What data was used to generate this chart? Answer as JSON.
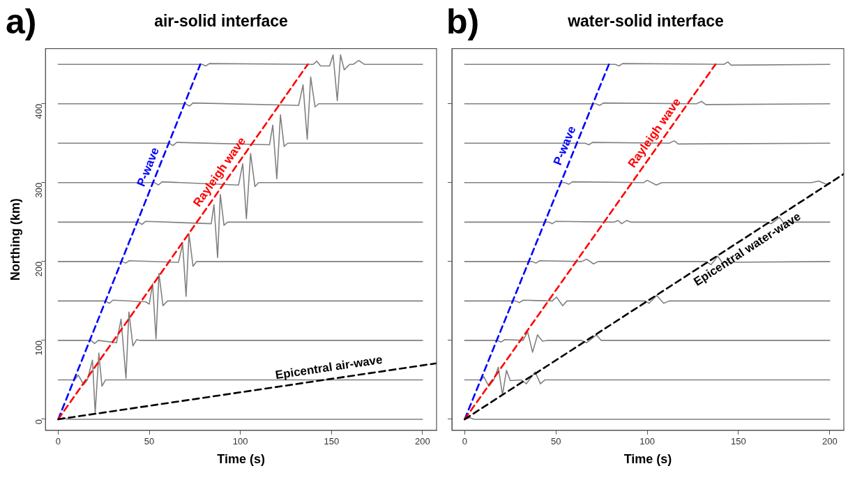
{
  "chart_data": [
    {
      "type": "line",
      "title": "air-solid interface",
      "xlabel": "Time (s)",
      "ylabel": "Northing (km)",
      "annotations": [
        "a)"
      ],
      "xlim": [
        -7,
        207.7
      ],
      "ylim": [
        -14,
        470
      ],
      "xticks": [
        0,
        50,
        100,
        150,
        200
      ],
      "yticks": [
        0,
        100,
        200,
        300,
        400
      ],
      "grid": false,
      "legend": false,
      "marker": "none",
      "series": [
        {
          "color": "#808080",
          "x": [
            0,
            3,
            5,
            200
          ],
          "values": [
            0,
            2,
            0,
            0
          ]
        },
        {
          "color": "#808080",
          "x": [
            0,
            9,
            11,
            14,
            16,
            18.8,
            20.3,
            22.3,
            24,
            26,
            200
          ],
          "values": [
            50,
            50,
            56,
            44,
            50,
            75,
            8,
            84,
            42,
            50,
            50
          ]
        },
        {
          "color": "#808080",
          "x": [
            0,
            18,
            20,
            22,
            32,
            34.5,
            37.2,
            38.8,
            41,
            43,
            45,
            200
          ],
          "values": [
            100,
            100,
            96,
            100,
            97,
            127,
            52,
            136,
            93,
            101,
            100,
            100
          ]
        },
        {
          "color": "#808080",
          "x": [
            0,
            26,
            28,
            30,
            48,
            50,
            51.8,
            53.7,
            55.3,
            57.5,
            60,
            200
          ],
          "values": [
            150,
            150,
            147,
            151,
            149,
            146,
            172,
            102,
            185,
            144,
            150,
            150
          ]
        },
        {
          "color": "#808080",
          "x": [
            0,
            35,
            37,
            39,
            66,
            68.3,
            70.2,
            71.8,
            74,
            76,
            200
          ],
          "values": [
            200,
            200,
            198,
            201,
            199,
            222,
            156,
            235,
            194,
            200,
            200
          ]
        },
        {
          "color": "#808080",
          "x": [
            0,
            44,
            46,
            48,
            84,
            85.5,
            87.5,
            89,
            91,
            93,
            200
          ],
          "values": [
            250,
            250,
            247,
            251,
            248,
            272,
            205,
            285,
            246,
            250,
            250
          ]
        },
        {
          "color": "#808080",
          "x": [
            0,
            53,
            55,
            57,
            99,
            101.3,
            103.3,
            105.6,
            108,
            110,
            200
          ],
          "values": [
            300,
            300,
            297,
            301,
            297,
            324,
            254,
            337,
            295,
            300,
            300
          ]
        },
        {
          "color": "#808080",
          "x": [
            0,
            61,
            63,
            65,
            116,
            117.8,
            120,
            122,
            124,
            126,
            200
          ],
          "values": [
            350,
            350,
            347,
            351,
            348,
            373,
            305,
            386,
            346,
            350,
            350
          ]
        },
        {
          "color": "#808080",
          "x": [
            0,
            70,
            72,
            74,
            132,
            134.4,
            136.7,
            138.6,
            141,
            143,
            200
          ],
          "values": [
            400,
            400,
            397,
            401,
            398,
            424,
            355,
            434,
            396,
            400,
            400
          ]
        },
        {
          "color": "#808080",
          "x": [
            0,
            79,
            81,
            83,
            140,
            142,
            144,
            149,
            150.9,
            153.2,
            155,
            157,
            160,
            162,
            165,
            168,
            200
          ],
          "values": [
            450,
            450,
            448,
            451,
            450,
            454,
            448,
            448,
            462,
            404,
            462,
            443,
            450,
            450,
            455,
            450,
            450
          ]
        },
        {
          "name": "P-wave",
          "color": "#0000ff",
          "line_style": "dashed",
          "x": [
            0,
            78
          ],
          "values": [
            0,
            450
          ]
        },
        {
          "name": "Rayleigh wave",
          "color": "#ff0000",
          "line_style": "dashed",
          "x": [
            0,
            137
          ],
          "values": [
            0,
            450
          ]
        },
        {
          "name": "Epicentral air-wave",
          "color": "#000000",
          "line_style": "dashed",
          "x": [
            0,
            207.7
          ],
          "values": [
            0,
            71
          ]
        }
      ]
    },
    {
      "type": "line",
      "title": "water-solid interface",
      "xlabel": "Time (s)",
      "annotations": [
        "b)"
      ],
      "xlim": [
        -7,
        207.7
      ],
      "ylim": [
        -14,
        470
      ],
      "xticks": [
        0,
        50,
        100,
        150,
        200
      ],
      "yticks": [
        0,
        100,
        200,
        300,
        400
      ],
      "tick_labels": "x",
      "grid": false,
      "legend": false,
      "marker": "none",
      "series": [
        {
          "color": "#808080",
          "x": [
            0,
            3,
            5,
            200
          ],
          "values": [
            0,
            2,
            0,
            0
          ]
        },
        {
          "color": "#808080",
          "x": [
            0,
            9,
            10.4,
            13.3,
            16,
            18.4,
            20.7,
            22.9,
            25,
            31,
            33.8,
            38.6,
            41.5,
            44,
            200
          ],
          "values": [
            50,
            50,
            54,
            42,
            50,
            66,
            31,
            62,
            49,
            50,
            45,
            60,
            45,
            50,
            50
          ]
        },
        {
          "color": "#808080",
          "x": [
            0,
            18,
            20,
            22,
            32,
            34.5,
            37.2,
            39.9,
            42.6,
            45,
            64,
            66.8,
            72.2,
            74.8,
            200
          ],
          "values": [
            100,
            100,
            98,
            101,
            100,
            111,
            85,
            107,
            99,
            100,
            100,
            97,
            107,
            100,
            100
          ]
        },
        {
          "color": "#808080",
          "x": [
            0,
            28,
            30,
            32,
            48,
            50.3,
            53.7,
            56,
            99,
            101,
            105.2,
            109,
            112,
            200
          ],
          "values": [
            150,
            150,
            148,
            151,
            150,
            155,
            144,
            150,
            150,
            147,
            157,
            147,
            150,
            150
          ]
        },
        {
          "color": "#808080",
          "x": [
            0,
            37,
            39,
            41,
            64,
            66.8,
            70.6,
            73,
            132,
            135,
            138.6,
            141,
            200
          ],
          "values": [
            200,
            200,
            198,
            201,
            200,
            203,
            197,
            200,
            200,
            196,
            207,
            199,
            200
          ]
        },
        {
          "color": "#808080",
          "x": [
            0,
            46,
            48,
            50,
            82,
            84,
            86,
            88.7,
            91,
            165,
            168,
            172.4,
            175,
            178,
            200
          ],
          "values": [
            250,
            250,
            248,
            251,
            250,
            252,
            248,
            252,
            250,
            250,
            248,
            256,
            248,
            250,
            250
          ]
        },
        {
          "color": "#808080",
          "x": [
            0,
            55,
            57,
            59,
            98,
            100,
            105,
            108,
            190,
            194,
            198,
            200
          ],
          "values": [
            300,
            300,
            298,
            301,
            300,
            303,
            297,
            300,
            300,
            302,
            298,
            300
          ]
        },
        {
          "color": "#808080",
          "x": [
            0,
            66,
            68,
            70,
            112,
            114.8,
            117,
            200
          ],
          "values": [
            350,
            350,
            348,
            351,
            350,
            353,
            349,
            350
          ]
        },
        {
          "color": "#808080",
          "x": [
            0,
            72,
            74,
            76,
            127,
            129.8,
            132,
            200
          ],
          "values": [
            400,
            400,
            398,
            401,
            400,
            403,
            399,
            400
          ]
        },
        {
          "color": "#808080",
          "x": [
            0,
            82.5,
            84.5,
            86.5,
            142,
            144.2,
            146,
            200
          ],
          "values": [
            450,
            450,
            448,
            451,
            450,
            453,
            449,
            450
          ]
        },
        {
          "name": "P-wave",
          "color": "#0000ff",
          "line_style": "dashed",
          "x": [
            0,
            79
          ],
          "values": [
            0,
            450
          ]
        },
        {
          "name": "Rayleigh wave",
          "color": "#ff0000",
          "line_style": "dashed",
          "x": [
            0,
            137.4
          ],
          "values": [
            0,
            450
          ]
        },
        {
          "name": "Epicentral water-wave",
          "color": "#000000",
          "line_style": "dashed",
          "x": [
            0,
            207.7
          ],
          "values": [
            0,
            311
          ]
        }
      ]
    }
  ]
}
